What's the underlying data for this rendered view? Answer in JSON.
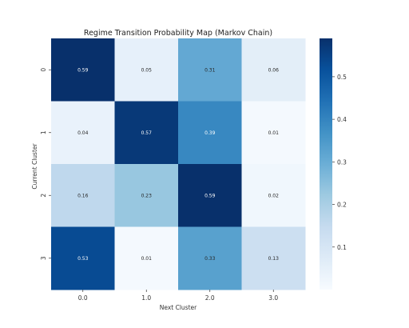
{
  "chart_data": {
    "type": "heatmap",
    "title": "Regime Transition Probability Map (Markov Chain)",
    "xlabel": "Next Cluster",
    "ylabel": "Current Cluster",
    "x_categories": [
      "0.0",
      "1.0",
      "2.0",
      "3.0"
    ],
    "y_categories": [
      "0",
      "1",
      "2",
      "3"
    ],
    "values": [
      [
        0.59,
        0.05,
        0.31,
        0.06
      ],
      [
        0.04,
        0.57,
        0.39,
        0.01
      ],
      [
        0.16,
        0.23,
        0.59,
        0.02
      ],
      [
        0.53,
        0.01,
        0.33,
        0.13
      ]
    ],
    "colormap": "Blues",
    "vmin": 0.0,
    "vmax": 0.59,
    "colorbar_ticks": [
      "0.1",
      "0.2",
      "0.3",
      "0.4",
      "0.5"
    ],
    "colorbar_tick_values": [
      0.1,
      0.2,
      0.3,
      0.4,
      0.5
    ],
    "grid": false
  }
}
